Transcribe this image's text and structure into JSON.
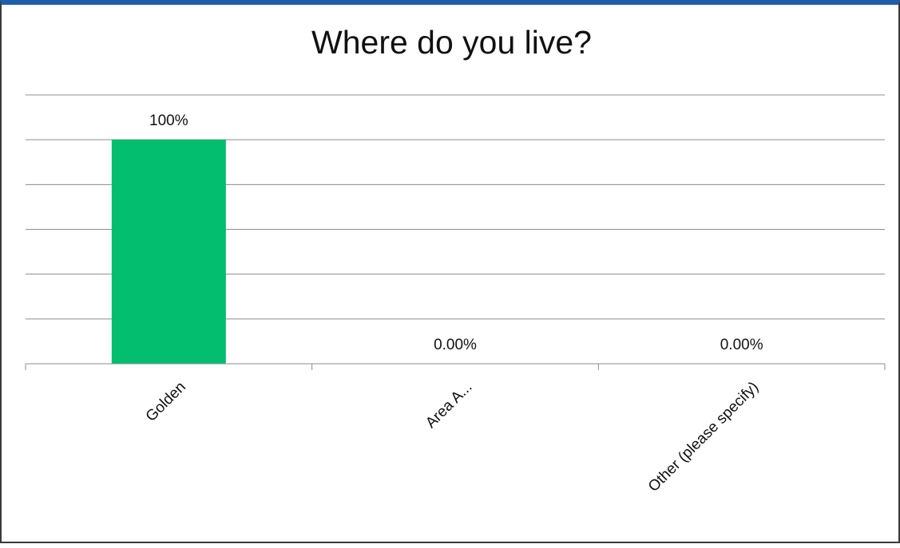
{
  "chart_data": {
    "type": "bar",
    "title": "Where do you live?",
    "categories": [
      "Golden",
      "Area A...",
      "Other (please specify)"
    ],
    "values": [
      100,
      0,
      0
    ],
    "data_labels": [
      "100%",
      "0.00%",
      "0.00%"
    ],
    "ylim": [
      0,
      120
    ],
    "y_gridline_step": 20,
    "grid": true,
    "legend": "none",
    "bar_color": "#02be6e",
    "xlabel": "",
    "ylabel": ""
  }
}
